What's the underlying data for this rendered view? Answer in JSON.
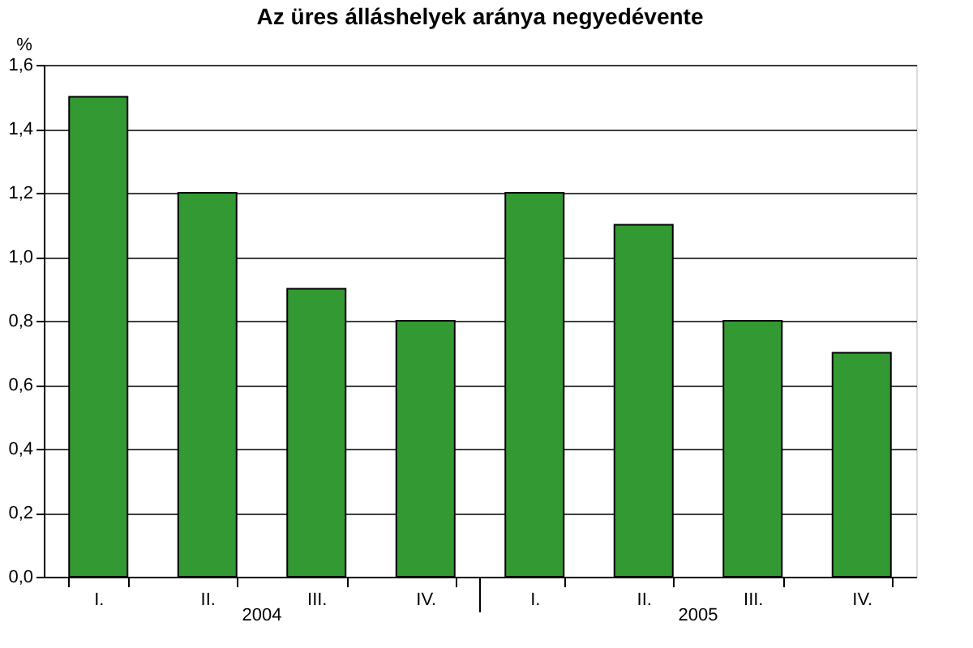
{
  "chart_data": {
    "type": "bar",
    "title": "Az üres álláshelyek aránya negyedévente",
    "ylabel": "%",
    "categories": [
      "I.",
      "II.",
      "III.",
      "IV.",
      "I.",
      "II.",
      "III.",
      "IV."
    ],
    "series": [
      {
        "color": "#339933",
        "values": [
          1.5,
          1.2,
          0.9,
          0.8,
          1.2,
          1.1,
          0.8,
          0.7
        ]
      }
    ],
    "ylim": [
      0,
      1.6
    ],
    "yticks": [
      {
        "value": 0,
        "label": "0,0"
      },
      {
        "value": 0.2,
        "label": "0,2"
      },
      {
        "value": 0.4,
        "label": "0,4"
      },
      {
        "value": 0.6,
        "label": "0,6"
      },
      {
        "value": 0.8,
        "label": "0,8"
      },
      {
        "value": 1.0,
        "label": "1,0"
      },
      {
        "value": 1.2,
        "label": "1,2"
      },
      {
        "value": 1.4,
        "label": "1,4"
      },
      {
        "value": 1.6,
        "label": "1,6"
      }
    ],
    "annotations": [
      "2004",
      "2005"
    ],
    "grid": "y"
  }
}
